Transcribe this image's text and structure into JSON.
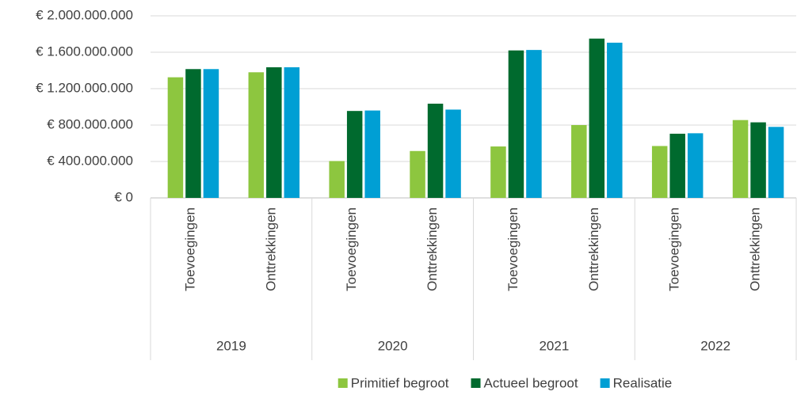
{
  "chart_data": {
    "type": "bar",
    "categories": [
      "Toevoegingen",
      "Onttrekkingen",
      "Toevoegingen",
      "Onttrekkingen",
      "Toevoegingen",
      "Onttrekkingen",
      "Toevoegingen",
      "Onttrekkingen"
    ],
    "group_labels": [
      "2019",
      "2020",
      "2021",
      "2022"
    ],
    "series": [
      {
        "name": "Primitief begroot",
        "color": "#8dc63f",
        "values": [
          1325000000,
          1380000000,
          405000000,
          515000000,
          565000000,
          800000000,
          570000000,
          855000000
        ]
      },
      {
        "name": "Actueel begroot",
        "color": "#006a2e",
        "values": [
          1415000000,
          1435000000,
          955000000,
          1035000000,
          1620000000,
          1750000000,
          705000000,
          830000000
        ]
      },
      {
        "name": "Realisatie",
        "color": "#009fd4",
        "values": [
          1415000000,
          1435000000,
          960000000,
          970000000,
          1625000000,
          1705000000,
          710000000,
          780000000
        ]
      }
    ],
    "ylim": [
      0,
      2000000000
    ],
    "yticks": [
      {
        "value": 0,
        "label": "€ 0"
      },
      {
        "value": 400000000,
        "label": "€ 400.000.000"
      },
      {
        "value": 800000000,
        "label": "€ 800.000.000"
      },
      {
        "value": 1200000000,
        "label": "€ 1.200.000.000"
      },
      {
        "value": 1600000000,
        "label": "€ 1.600.000.000"
      },
      {
        "value": 2000000000,
        "label": "€ 2.000.000.000"
      }
    ],
    "grid": true,
    "legend": "bottom"
  }
}
